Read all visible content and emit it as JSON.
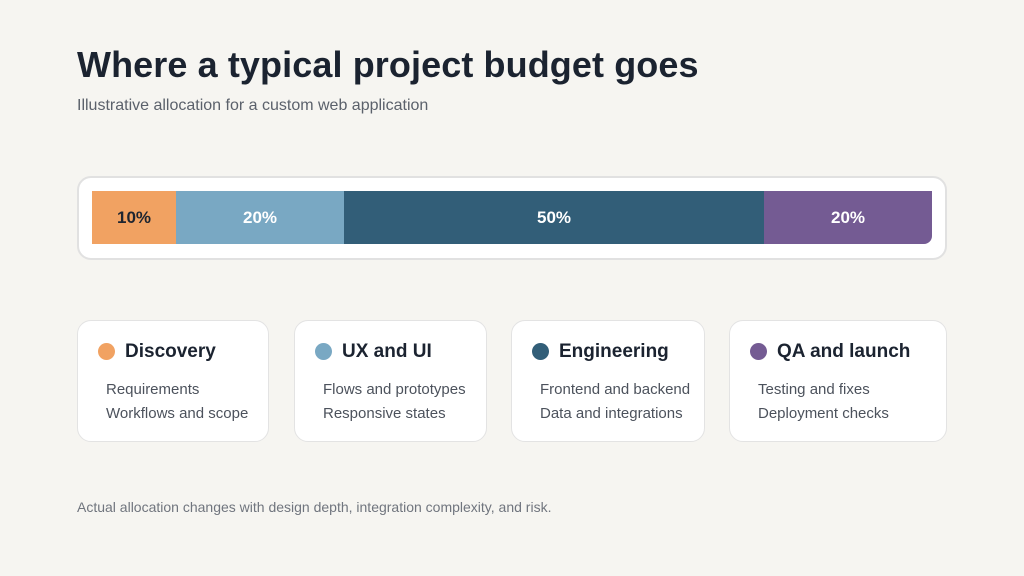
{
  "title": "Where a typical project budget goes",
  "subtitle": "Illustrative allocation for a custom web application",
  "chart_data": {
    "type": "bar",
    "orientation": "horizontal-stacked",
    "unit": "%",
    "categories": [
      "Discovery",
      "UX and UI",
      "Engineering",
      "QA and launch"
    ],
    "values": [
      10,
      20,
      50,
      20
    ],
    "labels": [
      "10%",
      "20%",
      "50%",
      "20%"
    ],
    "colors": [
      "#f1a262",
      "#79a8c3",
      "#325e78",
      "#745b93"
    ],
    "label_colors": [
      "#1e2530",
      "#ffffff",
      "#ffffff",
      "#ffffff"
    ]
  },
  "cards": [
    {
      "title": "Discovery",
      "lines": [
        "Requirements",
        "Workflows and scope"
      ]
    },
    {
      "title": "UX and UI",
      "lines": [
        "Flows and prototypes",
        "Responsive states"
      ]
    },
    {
      "title": "Engineering",
      "lines": [
        "Frontend and backend",
        "Data and integrations"
      ]
    },
    {
      "title": "QA and launch",
      "lines": [
        "Testing and fixes",
        "Deployment checks"
      ]
    }
  ],
  "footnote": "Actual allocation changes with design depth, integration complexity, and risk."
}
